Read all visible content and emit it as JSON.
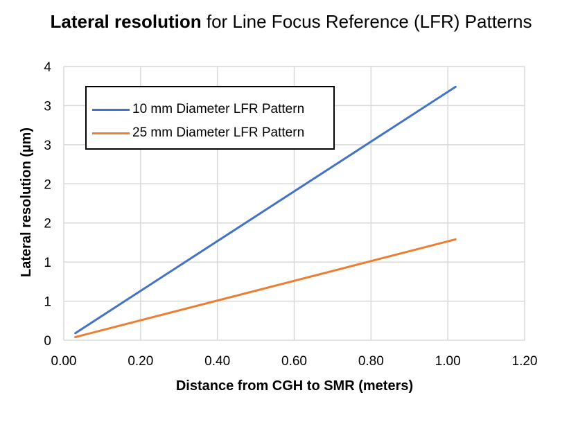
{
  "chart_data": {
    "type": "line",
    "title_bold": "Lateral resolution",
    "title_rest": " for Line Focus Reference (LFR) Patterns",
    "xlabel": "Distance from CGH to SMR (meters)",
    "ylabel": "Lateral resolution (µm)",
    "xlim": [
      0,
      1.2
    ],
    "ylim": [
      0,
      3.5
    ],
    "xticks": [
      0,
      0.2,
      0.4,
      0.6,
      0.8,
      1.0,
      1.2
    ],
    "xtick_labels": [
      "0.00",
      "0.20",
      "0.40",
      "0.60",
      "0.80",
      "1.00",
      "1.20"
    ],
    "yticks": [
      0,
      0.5,
      1.0,
      1.5,
      2.0,
      2.5,
      3.0,
      3.5
    ],
    "ytick_labels": [
      "0",
      "1",
      "1",
      "2",
      "2",
      "3",
      "3",
      "4"
    ],
    "grid": true,
    "legend_position": "top-left",
    "series": [
      {
        "name": "10 mm Diameter LFR Pattern",
        "color": "#4472C4",
        "x": [
          0.03,
          1.02
        ],
        "y": [
          0.09,
          3.24
        ]
      },
      {
        "name": "25 mm Diameter LFR Pattern",
        "color": "#ED7D31",
        "x": [
          0.03,
          1.02
        ],
        "y": [
          0.04,
          1.29
        ]
      }
    ]
  }
}
